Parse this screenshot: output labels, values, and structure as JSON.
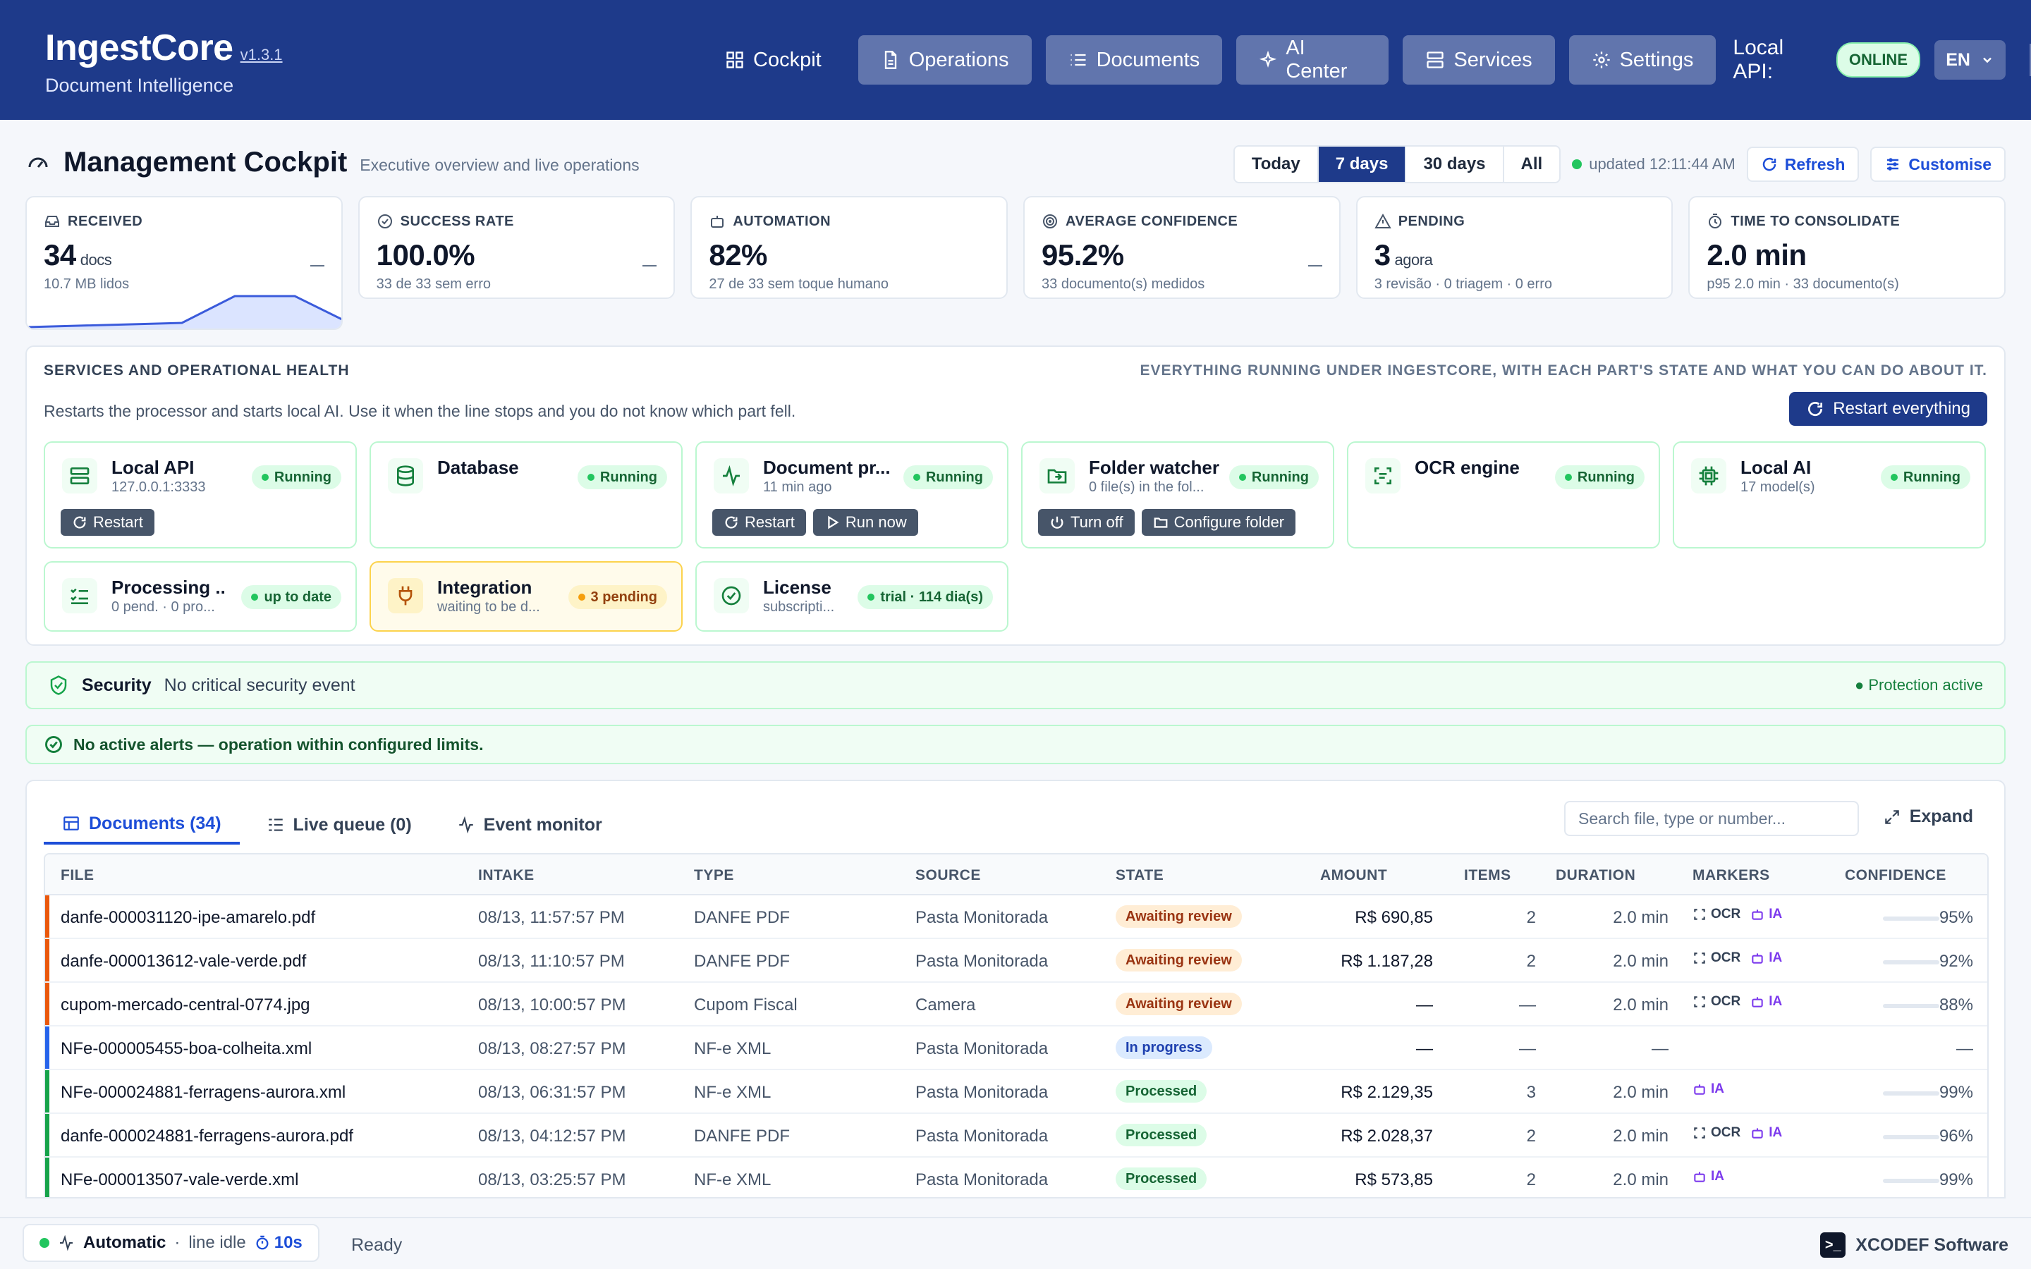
{
  "header": {
    "title": "IngestCore",
    "version": "v1.3.1",
    "subtitle": "Document Intelligence",
    "nav": [
      {
        "label": "Cockpit",
        "icon": "grid-icon"
      },
      {
        "label": "Operations",
        "icon": "file-icon"
      },
      {
        "label": "Documents",
        "icon": "list-icon"
      },
      {
        "label": "AI Center",
        "icon": "sparkle-icon"
      },
      {
        "label": "Services",
        "icon": "server-icon"
      },
      {
        "label": "Settings",
        "icon": "gear-icon"
      }
    ],
    "api_label": "Local API:",
    "api_status": "ONLINE",
    "lang": "EN"
  },
  "page": {
    "title": "Management Cockpit",
    "subtitle": "Executive overview and live operations",
    "ranges": [
      "Today",
      "7 days",
      "30 days",
      "All"
    ],
    "active_range": "7 days",
    "updated": "updated 12:11:44 AM",
    "refresh": "Refresh",
    "customise": "Customise"
  },
  "kpis": [
    {
      "label": "RECEIVED",
      "value": "34",
      "unit": "docs",
      "note": "10.7 MB lidos",
      "icon": "inbox-icon"
    },
    {
      "label": "SUCCESS RATE",
      "value": "100.0%",
      "unit": "",
      "note": "33 de 33 sem erro",
      "icon": "check-circle-icon"
    },
    {
      "label": "AUTOMATION",
      "value": "82%",
      "unit": "",
      "note": "27 de 33 sem toque humano",
      "icon": "robot-icon"
    },
    {
      "label": "AVERAGE CONFIDENCE",
      "value": "95.2%",
      "unit": "",
      "note": "33 documento(s) medidos",
      "icon": "target-icon"
    },
    {
      "label": "PENDING",
      "value": "3",
      "unit": "agora",
      "note": "3 revisão · 0 triagem · 0 erro",
      "icon": "warning-icon"
    },
    {
      "label": "TIME TO CONSOLIDATE",
      "value": "2.0 min",
      "unit": "",
      "note": "p95 2.0 min · 33 documento(s)",
      "icon": "timer-icon"
    }
  ],
  "services": {
    "title": "SERVICES AND OPERATIONAL HEALTH",
    "hint": "Everything running under IngestCore, with each part's state and what you can do about it.",
    "desc": "Restarts the processor and starts local AI. Use it when the line stops and you do not know which part fell.",
    "restart_all": "Restart everything",
    "cards": [
      {
        "name": "Local API",
        "sub": "127.0.0.1:3333",
        "status": "Running",
        "icon": "server-icon",
        "actions": [
          "Restart"
        ]
      },
      {
        "name": "Database",
        "sub": "",
        "status": "Running",
        "icon": "database-icon",
        "actions": []
      },
      {
        "name": "Document pr...",
        "sub": "11 min ago",
        "status": "Running",
        "icon": "activity-icon",
        "actions": [
          "Restart",
          "Run now"
        ]
      },
      {
        "name": "Folder watcher",
        "sub": "0 file(s) in the fol...",
        "status": "Running",
        "icon": "folder-icon",
        "actions": [
          "Turn off",
          "Configure folder"
        ]
      },
      {
        "name": "OCR engine",
        "sub": "",
        "status": "Running",
        "icon": "scan-icon",
        "actions": []
      },
      {
        "name": "Local AI",
        "sub": "17 model(s)",
        "status": "Running",
        "icon": "chip-icon",
        "actions": []
      },
      {
        "name": "Processing ...",
        "sub": "0 pend. · 0 pro...",
        "status": "up to date",
        "icon": "checklist-icon",
        "actions": []
      },
      {
        "name": "Integration",
        "sub": "waiting to be d...",
        "status": "3 pending",
        "icon": "plug-icon",
        "actions": [],
        "warn": true
      },
      {
        "name": "License",
        "sub": "subscripti...",
        "status": "trial · 114 dia(s)",
        "icon": "badge-check-icon",
        "actions": []
      }
    ]
  },
  "security": {
    "title": "Security",
    "text": "No critical security event",
    "protection": "Protection active"
  },
  "alert": "No active alerts — operation within configured limits.",
  "docs": {
    "tabs": [
      "Documents (34)",
      "Live queue (0)",
      "Event monitor"
    ],
    "search_placeholder": "Search file, type or number...",
    "expand": "Expand",
    "columns": [
      "FILE",
      "INTAKE",
      "TYPE",
      "SOURCE",
      "STATE",
      "AMOUNT",
      "ITEMS",
      "DURATION",
      "MARKERS",
      "CONFIDENCE"
    ],
    "rows": [
      {
        "file": "danfe-000031120-ipe-amarelo.pdf",
        "intake": "08/13, 11:57:57 PM",
        "type": "DANFE PDF",
        "source": "Pasta Monitorada",
        "state": "Awaiting review",
        "amount": "R$ 690,85",
        "items": "2",
        "duration": "2.0 min",
        "markers": [
          "OCR",
          "IA"
        ],
        "confidence": "95%"
      },
      {
        "file": "danfe-000013612-vale-verde.pdf",
        "intake": "08/13, 11:10:57 PM",
        "type": "DANFE PDF",
        "source": "Pasta Monitorada",
        "state": "Awaiting review",
        "amount": "R$ 1.187,28",
        "items": "2",
        "duration": "2.0 min",
        "markers": [
          "OCR",
          "IA"
        ],
        "confidence": "92%"
      },
      {
        "file": "cupom-mercado-central-0774.jpg",
        "intake": "08/13, 10:00:57 PM",
        "type": "Cupom Fiscal",
        "source": "Camera",
        "state": "Awaiting review",
        "amount": "—",
        "items": "—",
        "duration": "2.0 min",
        "markers": [
          "OCR",
          "IA"
        ],
        "confidence": "88%"
      },
      {
        "file": "NFe-000005455-boa-colheita.xml",
        "intake": "08/13, 08:27:57 PM",
        "type": "NF-e XML",
        "source": "Pasta Monitorada",
        "state": "In progress",
        "amount": "—",
        "items": "—",
        "duration": "—",
        "markers": [],
        "confidence": "—"
      },
      {
        "file": "NFe-000024881-ferragens-aurora.xml",
        "intake": "08/13, 06:31:57 PM",
        "type": "NF-e XML",
        "source": "Pasta Monitorada",
        "state": "Processed",
        "amount": "R$ 2.129,35",
        "items": "3",
        "duration": "2.0 min",
        "markers": [
          "IA"
        ],
        "confidence": "99%"
      },
      {
        "file": "danfe-000024881-ferragens-aurora.pdf",
        "intake": "08/13, 04:12:57 PM",
        "type": "DANFE PDF",
        "source": "Pasta Monitorada",
        "state": "Processed",
        "amount": "R$ 2.028,37",
        "items": "2",
        "duration": "2.0 min",
        "markers": [
          "OCR",
          "IA"
        ],
        "confidence": "96%"
      },
      {
        "file": "NFe-000013507-vale-verde.xml",
        "intake": "08/13, 03:25:57 PM",
        "type": "NF-e XML",
        "source": "Pasta Monitorada",
        "state": "Processed",
        "amount": "R$ 573,85",
        "items": "2",
        "duration": "2.0 min",
        "markers": [
          "IA"
        ],
        "confidence": "99%"
      }
    ]
  },
  "footer": {
    "mode": "Automatic",
    "line": "line idle",
    "timer": "10s",
    "status": "Ready",
    "vendor": "XCODEF Software"
  },
  "colors": {
    "primary": "#1e3a8a",
    "accent": "#1d4ed8",
    "review": "#ea580c",
    "progress": "#2563eb",
    "processed": "#16a34a"
  }
}
